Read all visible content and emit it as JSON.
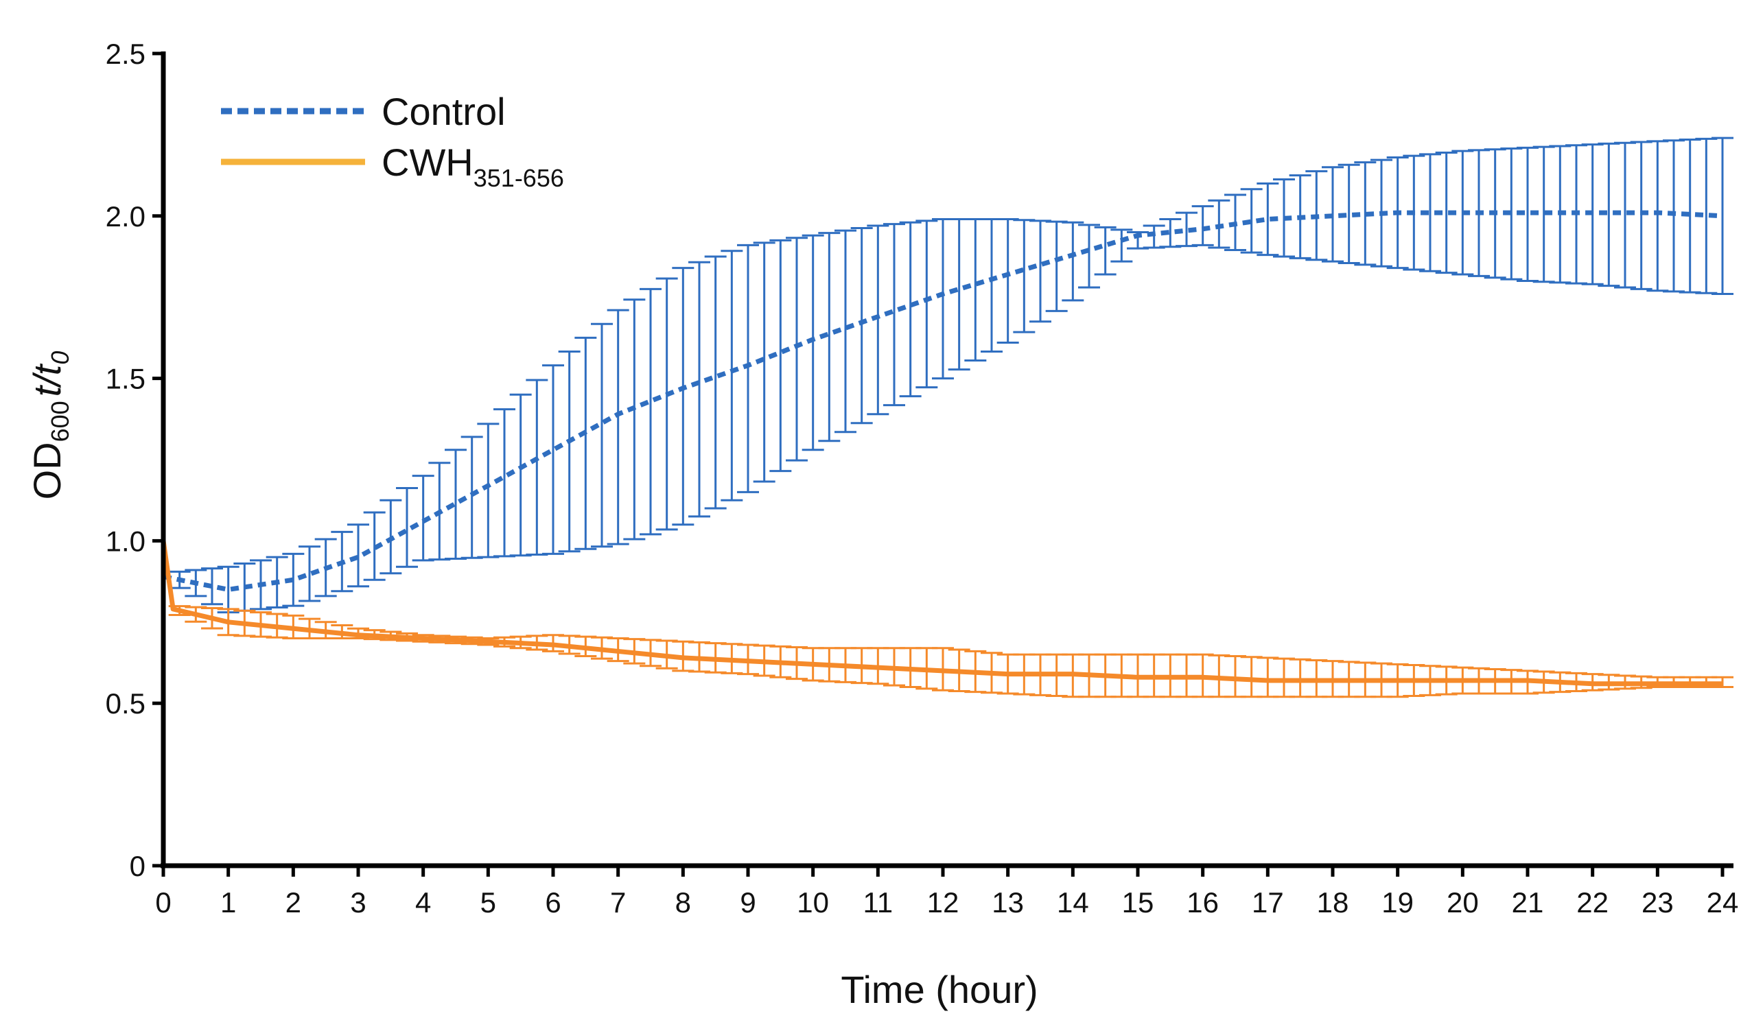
{
  "chart_data": {
    "type": "line",
    "title": "",
    "xlabel": "Time (hour)",
    "ylabel_parts": {
      "od": "OD",
      "od_sub": "600",
      "t": "t/t",
      "t_sub": "0"
    },
    "xlim": [
      0,
      24
    ],
    "ylim": [
      0,
      2.5
    ],
    "xticks": [
      "0",
      "1",
      "2",
      "3",
      "4",
      "5",
      "6",
      "7",
      "8",
      "9",
      "10",
      "11",
      "12",
      "13",
      "14",
      "15",
      "16",
      "17",
      "18",
      "19",
      "20",
      "21",
      "22",
      "23",
      "24"
    ],
    "yticks": [
      "0",
      "0.5",
      "1.0",
      "1.5",
      "2.0",
      "2.5"
    ],
    "grid": false,
    "legend_position": "top-left",
    "series": [
      {
        "name": "Control",
        "name_main": "Control",
        "name_sub": "",
        "color": "#2F6EC0",
        "line_style": "dashed",
        "x": [
          0,
          1,
          2,
          3,
          4,
          5,
          6,
          7,
          8,
          9,
          10,
          11,
          12,
          13,
          14,
          15,
          16,
          17,
          18,
          19,
          20,
          21,
          22,
          23,
          24
        ],
        "y": [
          0.89,
          0.85,
          0.88,
          0.95,
          1.06,
          1.17,
          1.28,
          1.39,
          1.47,
          1.54,
          1.62,
          1.69,
          1.76,
          1.82,
          1.88,
          1.94,
          1.96,
          1.99,
          2.0,
          2.01,
          2.01,
          2.01,
          2.01,
          2.01,
          2.0
        ],
        "upper": [
          0.9,
          0.92,
          0.96,
          1.05,
          1.2,
          1.36,
          1.54,
          1.71,
          1.84,
          1.91,
          1.94,
          1.97,
          1.99,
          1.99,
          1.98,
          1.95,
          2.03,
          2.1,
          2.15,
          2.18,
          2.2,
          2.21,
          2.22,
          2.23,
          2.24
        ],
        "lower": [
          0.88,
          0.78,
          0.8,
          0.86,
          0.94,
          0.95,
          0.96,
          0.99,
          1.05,
          1.15,
          1.28,
          1.39,
          1.5,
          1.61,
          1.74,
          1.9,
          1.91,
          1.88,
          1.86,
          1.84,
          1.82,
          1.8,
          1.79,
          1.77,
          1.76
        ]
      },
      {
        "name": "CWH351-656",
        "name_main": "CWH",
        "name_sub": "351-656",
        "color": "#F58A2A",
        "legend_color": "#F5B23A",
        "line_style": "solid",
        "x": [
          0,
          0.15,
          1,
          2,
          3,
          4,
          5,
          6,
          7,
          8,
          9,
          10,
          11,
          12,
          13,
          14,
          15,
          16,
          17,
          18,
          19,
          20,
          21,
          22,
          23,
          24
        ],
        "y": [
          1.0,
          0.79,
          0.75,
          0.73,
          0.71,
          0.7,
          0.69,
          0.68,
          0.66,
          0.64,
          0.63,
          0.62,
          0.61,
          0.6,
          0.59,
          0.59,
          0.58,
          0.58,
          0.57,
          0.57,
          0.57,
          0.57,
          0.57,
          0.56,
          0.56,
          0.56
        ],
        "upper": [
          1.0,
          0.8,
          0.79,
          0.77,
          0.73,
          0.71,
          0.7,
          0.71,
          0.7,
          0.69,
          0.68,
          0.67,
          0.67,
          0.67,
          0.65,
          0.65,
          0.65,
          0.65,
          0.64,
          0.63,
          0.62,
          0.61,
          0.6,
          0.59,
          0.58,
          0.58
        ],
        "lower": [
          1.0,
          0.78,
          0.71,
          0.7,
          0.7,
          0.69,
          0.68,
          0.66,
          0.63,
          0.6,
          0.59,
          0.57,
          0.56,
          0.54,
          0.53,
          0.52,
          0.52,
          0.52,
          0.52,
          0.52,
          0.52,
          0.53,
          0.53,
          0.54,
          0.55,
          0.55
        ]
      }
    ]
  }
}
